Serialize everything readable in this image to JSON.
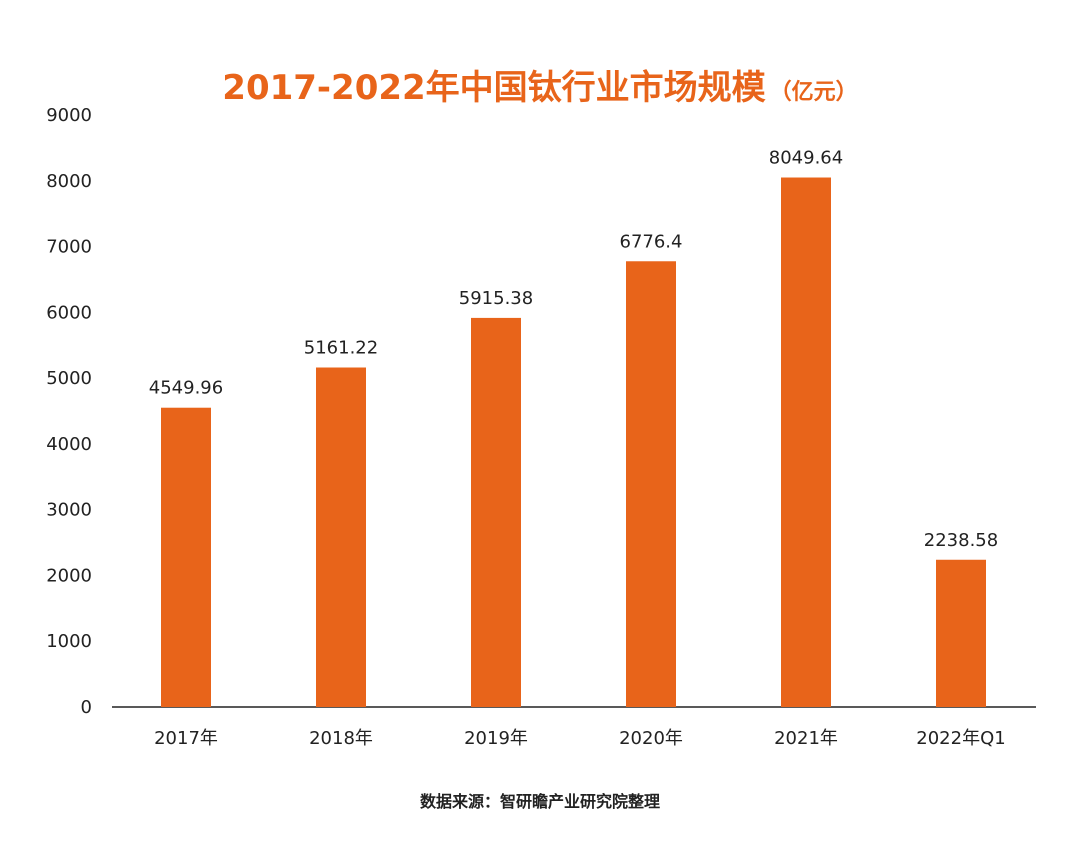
{
  "chart_data": {
    "type": "bar",
    "title": "2017-2022年中国钛行业市场规模",
    "title_unit": "（亿元）",
    "categories": [
      "2017年",
      "2018年",
      "2019年",
      "2020年",
      "2021年",
      "2022年Q1"
    ],
    "values": [
      4549.96,
      5161.22,
      5915.38,
      6776.4,
      8049.64,
      2238.58
    ],
    "value_labels": [
      "4549.96",
      "5161.22",
      "5915.38",
      "6776.4",
      "8049.64",
      "2238.58"
    ],
    "ylim": [
      0,
      9000
    ],
    "yticks": [
      "0",
      "1000",
      "2000",
      "3000",
      "4000",
      "5000",
      "6000",
      "7000",
      "8000",
      "9000"
    ],
    "xlabel": "",
    "ylabel": "",
    "grid": false,
    "legend": "none",
    "bar_color": "#E8641A"
  },
  "source_note": "数据来源：智研瞻产业研究院整理"
}
